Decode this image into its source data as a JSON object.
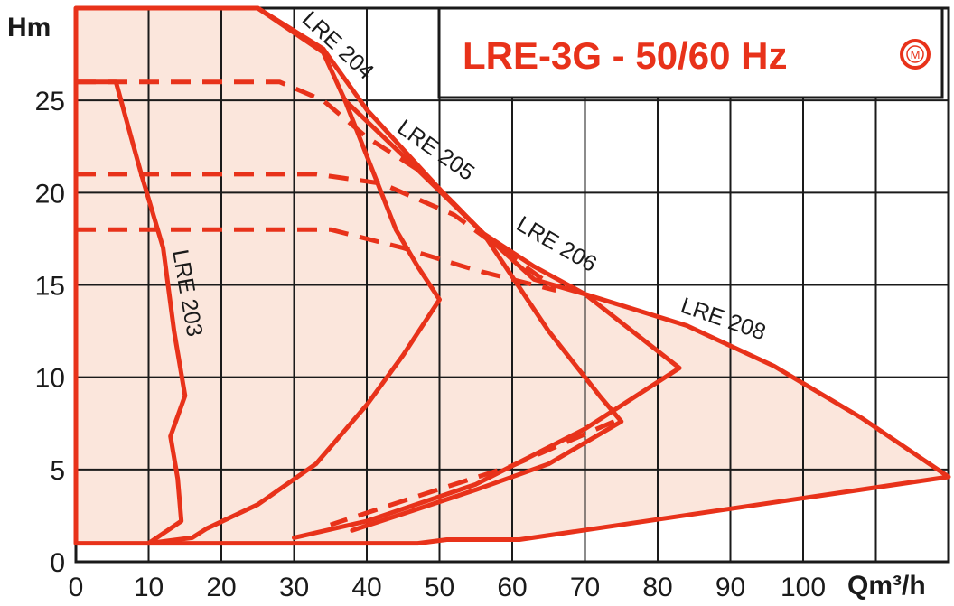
{
  "chart_data": {
    "type": "line",
    "title": "LRE-3G - 50/60 Hz",
    "xlabel": "Qm³/h",
    "ylabel": "Hm",
    "xlim": [
      0,
      120
    ],
    "ylim": [
      0,
      30
    ],
    "x_ticks": [
      "0",
      "10",
      "20",
      "30",
      "40",
      "50",
      "60",
      "70",
      "80",
      "90",
      "100"
    ],
    "y_ticks": [
      "0",
      "5",
      "10",
      "15",
      "20",
      "25"
    ],
    "grid": true,
    "colors": {
      "curve": "#e8321a",
      "fill": "#fbe6dc",
      "grid": "#1a1a1a"
    },
    "envelope": {
      "style": "solid",
      "points": [
        [
          0,
          1
        ],
        [
          47,
          1
        ],
        [
          51,
          1.2
        ],
        [
          61,
          1.2
        ],
        [
          120,
          4.6
        ],
        [
          108,
          7.8
        ],
        [
          96,
          10.6
        ],
        [
          84,
          12.8
        ],
        [
          70,
          14.5
        ],
        [
          63,
          16
        ],
        [
          56,
          17.8
        ],
        [
          50,
          20.2
        ],
        [
          40,
          24.5
        ],
        [
          34,
          27.8
        ],
        [
          25,
          30
        ],
        [
          0,
          30
        ]
      ]
    },
    "series": [
      {
        "name": "LRE 203",
        "style": "solid",
        "points": [
          [
            0,
            26
          ],
          [
            5.5,
            26
          ],
          [
            9,
            21
          ],
          [
            12,
            17
          ],
          [
            13.5,
            12.5
          ],
          [
            15,
            9
          ],
          [
            13,
            6.8
          ],
          [
            14,
            4.5
          ],
          [
            14.5,
            2.2
          ],
          [
            10,
            1
          ]
        ]
      },
      {
        "name": "LRE 204",
        "style": "solid",
        "points": [
          [
            25,
            30
          ],
          [
            34,
            27.6
          ],
          [
            37,
            25
          ],
          [
            40.5,
            21.5
          ],
          [
            44,
            18
          ],
          [
            47,
            16
          ],
          [
            50,
            14.2
          ],
          [
            45,
            11.2
          ],
          [
            40,
            8.5
          ],
          [
            33,
            5.3
          ],
          [
            25,
            3.1
          ],
          [
            18,
            1.8
          ],
          [
            16,
            1.3
          ],
          [
            10,
            1
          ]
        ]
      },
      {
        "name": "LRE 205",
        "style": "dashed",
        "points": [
          [
            0,
            26
          ],
          [
            28,
            26
          ],
          [
            34,
            25
          ],
          [
            40,
            23
          ],
          [
            48,
            21
          ],
          [
            56,
            17.8
          ]
        ]
      },
      {
        "name": "LRE 205",
        "style": "solid",
        "points": [
          [
            37,
            25
          ],
          [
            45,
            22
          ],
          [
            56,
            17.8
          ],
          [
            65,
            12.5
          ],
          [
            72,
            9
          ],
          [
            75,
            7.6
          ],
          [
            65,
            5.3
          ],
          [
            55,
            3.9
          ],
          [
            45,
            2.6
          ],
          [
            38,
            1.7
          ]
        ]
      },
      {
        "name": "LRE 206",
        "style": "dashed",
        "points": [
          [
            0,
            21
          ],
          [
            33,
            21
          ],
          [
            42,
            20.5
          ],
          [
            52,
            18.8
          ],
          [
            60,
            16.5
          ],
          [
            66,
            14.8
          ]
        ]
      },
      {
        "name": "LRE 206",
        "style": "dashed",
        "points": [
          [
            74,
            7.6
          ],
          [
            60,
            5.2
          ],
          [
            45,
            3.3
          ],
          [
            35,
            2
          ]
        ]
      },
      {
        "name": "LRE 206",
        "style": "solid",
        "points": [
          [
            56,
            17.8
          ],
          [
            63,
            15.3
          ],
          [
            70,
            14.5
          ],
          [
            83,
            10.5
          ],
          [
            70,
            7.2
          ],
          [
            55,
            4.2
          ],
          [
            40,
            2.2
          ],
          [
            30,
            1.3
          ]
        ]
      },
      {
        "name": "LRE 208",
        "style": "dashed",
        "points": [
          [
            0,
            18
          ],
          [
            35,
            18
          ],
          [
            45,
            17
          ],
          [
            55,
            15.8
          ],
          [
            66,
            14.7
          ]
        ]
      }
    ],
    "annotations": [
      "LRE 203",
      "LRE 204",
      "LRE 205",
      "LRE 206",
      "LRE 208"
    ]
  },
  "title_block": {
    "text": "LRE-3G - 50/60 Hz",
    "mark": "M"
  }
}
